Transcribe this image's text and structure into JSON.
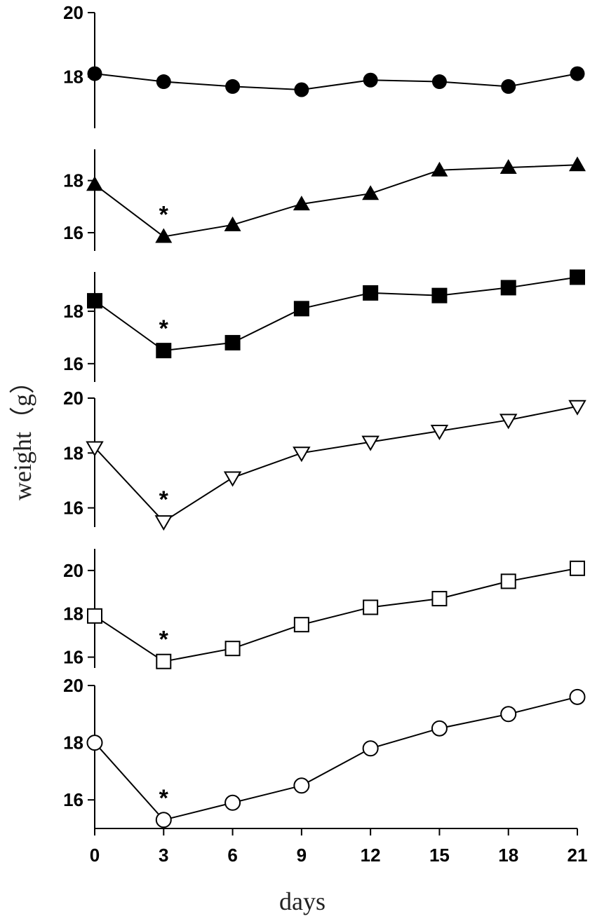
{
  "chart_data": {
    "type": "line",
    "xlabel": "days",
    "ylabel": "weight（g）",
    "x": [
      0,
      3,
      6,
      9,
      12,
      15,
      18,
      21
    ],
    "x_ticks": [
      "0",
      "3",
      "6",
      "9",
      "12",
      "15",
      "18",
      "21"
    ],
    "grid": false,
    "panels": [
      {
        "marker": "filled-circle",
        "y_ticks": [
          "20",
          "18"
        ],
        "ylim": [
          16.4,
          20
        ],
        "values": [
          18.1,
          17.85,
          17.7,
          17.6,
          17.9,
          17.85,
          17.7,
          18.1
        ],
        "annotations": []
      },
      {
        "marker": "filled-triangle",
        "y_ticks": [
          "18",
          "16"
        ],
        "ylim": [
          15.3,
          19.2
        ],
        "values": [
          17.85,
          15.85,
          16.3,
          17.1,
          17.5,
          18.4,
          18.5,
          18.6
        ],
        "annotations": [
          {
            "x": 3,
            "text": "*"
          }
        ]
      },
      {
        "marker": "filled-square",
        "y_ticks": [
          "18",
          "16"
        ],
        "ylim": [
          15.3,
          19.5
        ],
        "values": [
          18.4,
          16.5,
          16.8,
          18.1,
          18.7,
          18.6,
          18.9,
          19.3
        ],
        "annotations": [
          {
            "x": 3,
            "text": "*"
          }
        ]
      },
      {
        "marker": "open-down-triangle",
        "y_ticks": [
          "20",
          "18",
          "16"
        ],
        "ylim": [
          15.3,
          20
        ],
        "values": [
          18.2,
          15.5,
          17.1,
          18.0,
          18.4,
          18.8,
          19.2,
          19.7
        ],
        "annotations": [
          {
            "x": 3,
            "text": "*"
          }
        ]
      },
      {
        "marker": "open-square",
        "y_ticks": [
          "20",
          "18",
          "16"
        ],
        "ylim": [
          15.5,
          21
        ],
        "values": [
          17.9,
          15.8,
          16.4,
          17.5,
          18.3,
          18.7,
          19.5,
          20.1
        ],
        "annotations": [
          {
            "x": 3,
            "text": "*"
          }
        ]
      },
      {
        "marker": "open-circle",
        "y_ticks": [
          "20",
          "18",
          "16"
        ],
        "ylim": [
          15.0,
          20
        ],
        "values": [
          18.0,
          15.3,
          15.9,
          16.5,
          17.8,
          18.5,
          19.0,
          19.6
        ],
        "annotations": [
          {
            "x": 3,
            "text": "*"
          }
        ]
      }
    ]
  }
}
